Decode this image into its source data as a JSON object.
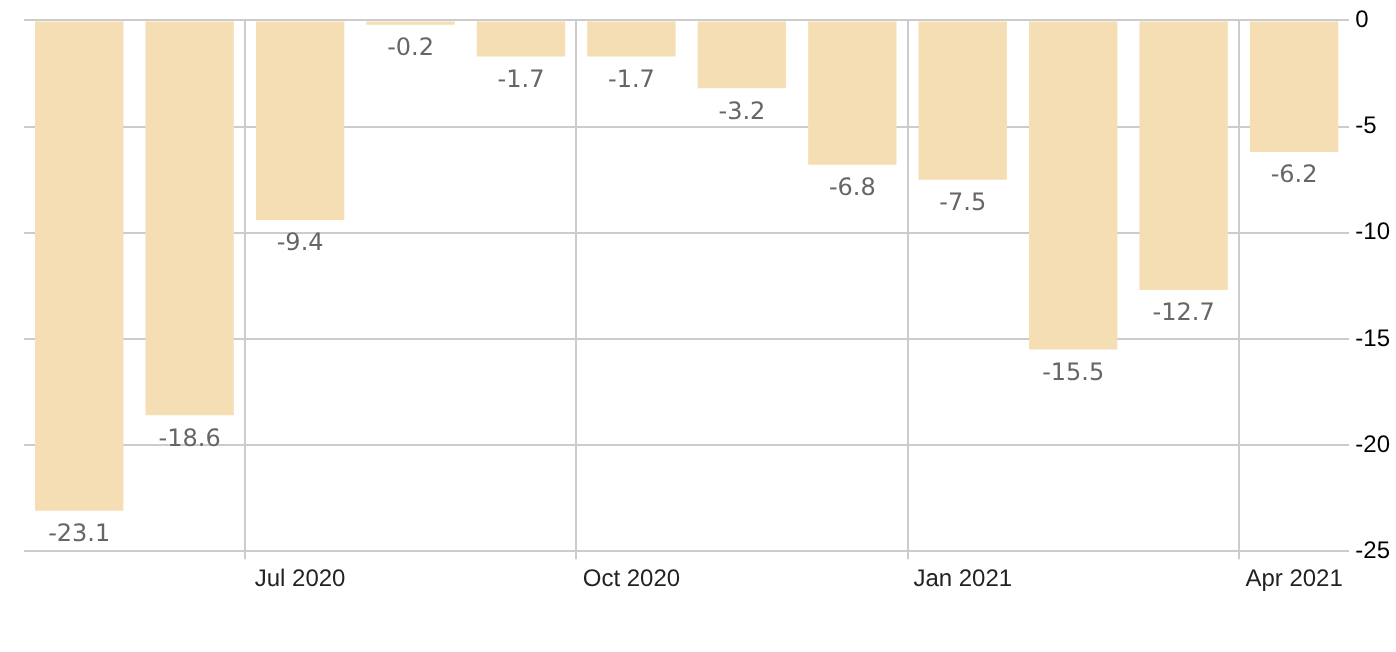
{
  "chart_data": {
    "type": "bar",
    "categories": [
      null,
      null,
      "Jul 2020",
      null,
      null,
      "Oct 2020",
      null,
      null,
      "Jan 2021",
      null,
      null,
      "Apr 2021"
    ],
    "values": [
      -23.1,
      -18.6,
      -9.4,
      -0.2,
      -1.7,
      -1.7,
      -3.2,
      -6.8,
      -7.5,
      -15.5,
      -12.7,
      -6.2
    ],
    "color": "#f5deb3",
    "ylim": [
      -25,
      0
    ],
    "yticks": [
      0,
      -5,
      -10,
      -15,
      -20,
      -25
    ],
    "grid": true,
    "data_labels": true,
    "legend": false
  }
}
